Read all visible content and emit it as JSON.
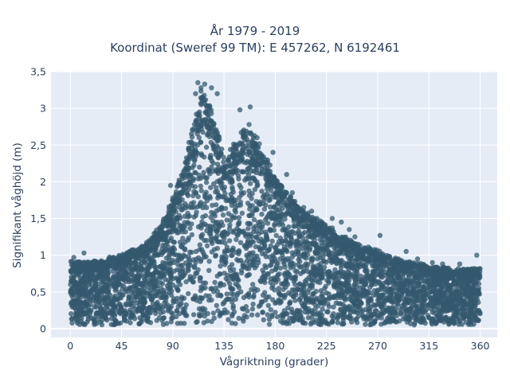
{
  "chart_data": {
    "type": "scatter",
    "title": "År 1979 - 2019",
    "subtitle": "Koordinat (Sweref 99 TM): E 457262, N 6192461",
    "xlabel": "Vågriktning (grader)",
    "ylabel": "Signifikant våghöjd (m)",
    "xlim": [
      -17,
      375
    ],
    "ylim": [
      -0.12,
      3.5
    ],
    "x_ticks": [
      0,
      45,
      90,
      135,
      180,
      225,
      270,
      315,
      360
    ],
    "x_tick_labels": [
      "0",
      "45",
      "90",
      "135",
      "180",
      "225",
      "270",
      "315",
      "360"
    ],
    "y_ticks": [
      0,
      0.5,
      1,
      1.5,
      2,
      2.5,
      3,
      3.5
    ],
    "y_tick_labels": [
      "0",
      "0,5",
      "1",
      "1,5",
      "2",
      "2,5",
      "3",
      "3,5"
    ],
    "grid": true,
    "marker_color": "#34586e",
    "plot_background": "#e5ecf6",
    "envelope": {
      "x": [
        0,
        20,
        45,
        65,
        80,
        90,
        100,
        110,
        115,
        120,
        128,
        135,
        145,
        155,
        165,
        180,
        200,
        225,
        250,
        270,
        290,
        315,
        340,
        360
      ],
      "y_max": [
        0.9,
        0.9,
        1.0,
        1.12,
        1.4,
        1.75,
        2.2,
        2.9,
        3.25,
        3.1,
        2.75,
        2.3,
        2.5,
        2.75,
        2.5,
        2.05,
        1.65,
        1.4,
        1.15,
        1.05,
        0.92,
        0.85,
        0.8,
        0.82
      ],
      "y_min": 0.05
    },
    "outliers": [
      {
        "x": 112,
        "y": 3.35
      },
      {
        "x": 118,
        "y": 3.33
      },
      {
        "x": 110,
        "y": 3.2
      },
      {
        "x": 124,
        "y": 3.28
      },
      {
        "x": 129,
        "y": 3.2
      },
      {
        "x": 158,
        "y": 3.02
      },
      {
        "x": 149,
        "y": 2.98
      },
      {
        "x": 157,
        "y": 2.78
      },
      {
        "x": 164,
        "y": 2.6
      },
      {
        "x": 178,
        "y": 2.4
      },
      {
        "x": 190,
        "y": 2.1
      },
      {
        "x": 195,
        "y": 1.85
      },
      {
        "x": 205,
        "y": 1.65
      },
      {
        "x": 212,
        "y": 1.6
      },
      {
        "x": 230,
        "y": 1.5
      },
      {
        "x": 238,
        "y": 1.45
      },
      {
        "x": 245,
        "y": 1.35
      },
      {
        "x": 250,
        "y": 1.25
      },
      {
        "x": 272,
        "y": 1.27
      },
      {
        "x": 295,
        "y": 1.05
      },
      {
        "x": 305,
        "y": 0.95
      },
      {
        "x": 318,
        "y": 0.9
      },
      {
        "x": 327,
        "y": 0.88
      },
      {
        "x": 342,
        "y": 0.88
      },
      {
        "x": 357,
        "y": 1.0
      },
      {
        "x": 3,
        "y": 0.97
      },
      {
        "x": 12,
        "y": 1.03
      },
      {
        "x": 31,
        "y": 0.9
      },
      {
        "x": 88,
        "y": 1.95
      },
      {
        "x": 98,
        "y": 1.85
      }
    ]
  }
}
